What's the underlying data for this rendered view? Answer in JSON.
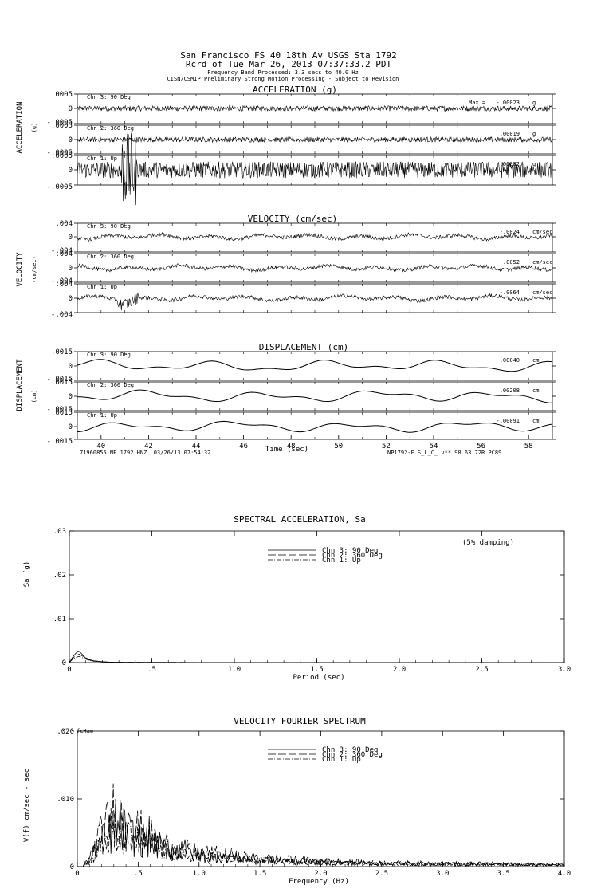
{
  "header": {
    "line1": "San Francisco FS 40 18th Av    USGS Sta 1792",
    "line2": "Rcrd of Tue Mar 26, 2013 07:37:33.2 PDT",
    "line3": "Frequency Band Processed: 3.3 secs to 40.0 Hz",
    "line4": "CISN/CSMIP Preliminary Strong Motion Processing - Subject to Revision"
  },
  "chart_data": [
    {
      "type": "line",
      "title": "ACCELERATION (g)",
      "ylabel": "ACCELERATION",
      "ylabel_unit": "(g)",
      "xlim": [
        39,
        59
      ],
      "ylim": [
        -0.0005,
        0.0005
      ],
      "ytick_labels": [
        ".0005",
        "0",
        "-.0005"
      ],
      "max_prefix": "Max =",
      "series": [
        {
          "name": "Chn 3: 90 Deg",
          "max_label": "-.00023",
          "unit": "g",
          "max": -0.00023
        },
        {
          "name": "Chn 2: 360 Deg",
          "max_label": ".00019",
          "unit": "g",
          "max": 0.00019
        },
        {
          "name": "Chn 1: Up",
          "max_label": ".00082",
          "unit": "g",
          "max": 0.00082
        }
      ]
    },
    {
      "type": "line",
      "title": "VELOCITY (cm/sec)",
      "ylabel": "VELOCITY",
      "ylabel_unit": "(cm/sec)",
      "xlim": [
        39,
        59
      ],
      "ylim": [
        -0.004,
        0.004
      ],
      "ytick_labels": [
        ".004",
        "0",
        "-.004"
      ],
      "series": [
        {
          "name": "Chn 3: 90 Deg",
          "max_label": "-.0024",
          "unit": "cm/sec",
          "max": -0.0024
        },
        {
          "name": "Chn 2: 360 Deg",
          "max_label": "-.0052",
          "unit": "cm/sec",
          "max": -0.0052
        },
        {
          "name": "Chn 1: Up",
          "max_label": "-.0064",
          "unit": "cm/sec",
          "max": -0.0064
        }
      ]
    },
    {
      "type": "line",
      "title": "DISPLACEMENT (cm)",
      "ylabel": "DISPLACEMENT",
      "ylabel_unit": "(cm)",
      "xlim": [
        39,
        59
      ],
      "ylim": [
        -0.0015,
        0.0015
      ],
      "ytick_labels": [
        ".0015",
        "0",
        "-.0015"
      ],
      "xlabel": "Time (sec)",
      "xticks": [
        40,
        42,
        44,
        46,
        48,
        50,
        52,
        54,
        56,
        58
      ],
      "footer_left": "71960855.NP.1792.HNZ. 03/26/13 07:54:32",
      "footer_right": "NP1792-F  S_L_C_  v**.98.63.72R PC89",
      "series": [
        {
          "name": "Chn 3: 90 Deg",
          "max_label": ".00040",
          "unit": "cm",
          "max": 0.0004
        },
        {
          "name": "Chn 2: 360 Deg",
          "max_label": ".00208",
          "unit": "cm",
          "max": 0.00208
        },
        {
          "name": "Chn 1: Up",
          "max_label": "-.00091",
          "unit": "cm",
          "max": -0.00091
        }
      ]
    },
    {
      "type": "line",
      "title": "SPECTRAL ACCELERATION, Sa",
      "ylabel": "Sa (g)",
      "xlabel": "Period (sec)",
      "annotation": "(5% damping)",
      "xlim": [
        0,
        3.0
      ],
      "ylim": [
        0,
        0.03
      ],
      "xticks": [
        0,
        0.5,
        1.0,
        1.5,
        2.0,
        2.5,
        3.0
      ],
      "xtick_labels": [
        "0",
        ".5",
        "1.0",
        "1.5",
        "2.0",
        "2.5",
        "3.0"
      ],
      "yticks": [
        0,
        0.01,
        0.02,
        0.03
      ],
      "ytick_labels": [
        "0",
        ".01",
        ".02",
        ".03"
      ],
      "legend": [
        "Chn 3: 90 Deg",
        "Chn 2: 360 Deg",
        "Chn 1: Up"
      ],
      "series": [
        {
          "name": "Chn 3: 90 Deg",
          "x": [
            0.02,
            0.04,
            0.06,
            0.08,
            0.1,
            0.12,
            0.15,
            0.2,
            0.25,
            0.3,
            0.5,
            1.0,
            2.0,
            3.0
          ],
          "y": [
            0.0012,
            0.0022,
            0.0026,
            0.0018,
            0.001,
            0.0006,
            0.0004,
            0.0002,
            0.0001,
            8e-05,
            4e-05,
            2e-05,
            1e-05,
            5e-06
          ]
        },
        {
          "name": "Chn 2: 360 Deg",
          "x": [
            0.02,
            0.04,
            0.06,
            0.08,
            0.1,
            0.12,
            0.15,
            0.2,
            0.25,
            0.3,
            0.5,
            1.0,
            2.0,
            3.0
          ],
          "y": [
            0.001,
            0.0016,
            0.0019,
            0.0015,
            0.0011,
            0.0007,
            0.0004,
            0.0002,
            0.0001,
            8e-05,
            4e-05,
            2e-05,
            1e-05,
            5e-06
          ]
        },
        {
          "name": "Chn 1: Up",
          "x": [
            0.02,
            0.04,
            0.06,
            0.08,
            0.1,
            0.12,
            0.15,
            0.2,
            0.25,
            0.3,
            0.5,
            1.0,
            2.0,
            3.0
          ],
          "y": [
            0.0008,
            0.0012,
            0.0014,
            0.0011,
            0.0008,
            0.0005,
            0.0003,
            0.0002,
            0.0001,
            6e-05,
            3e-05,
            2e-05,
            1e-05,
            5e-06
          ]
        }
      ]
    },
    {
      "type": "line",
      "title": "VELOCITY FOURIER SPECTRUM",
      "ylabel": "V(f)  cm/sec - sec",
      "xlabel": "Frequency (Hz)",
      "corner_label": "fcHaw",
      "xlim": [
        0,
        4.0
      ],
      "ylim": [
        0,
        0.02
      ],
      "xticks": [
        0,
        0.5,
        1.0,
        1.5,
        2.0,
        2.5,
        3.0,
        3.5,
        4.0
      ],
      "xtick_labels": [
        "0",
        ".5",
        "1.0",
        "1.5",
        "2.0",
        "2.5",
        "3.0",
        "3.5",
        "4.0"
      ],
      "yticks": [
        0,
        0.01,
        0.02
      ],
      "ytick_labels": [
        "0",
        ".010",
        ".020"
      ],
      "legend": [
        "Chn 3: 90 Deg",
        "Chn 2: 360 Deg",
        "Chn 1: Up"
      ],
      "series": [
        {
          "name": "Chn 3: 90 Deg",
          "x": [
            0.05,
            0.1,
            0.15,
            0.2,
            0.25,
            0.3,
            0.35,
            0.4,
            0.5,
            0.6,
            0.7,
            0.8,
            1.0,
            1.2,
            1.5,
            2.0,
            2.5,
            3.0,
            3.5,
            4.0
          ],
          "y": [
            0.0002,
            0.0012,
            0.003,
            0.0045,
            0.0055,
            0.007,
            0.0075,
            0.0065,
            0.005,
            0.0048,
            0.0035,
            0.003,
            0.002,
            0.0018,
            0.0012,
            0.0008,
            0.0006,
            0.0005,
            0.0004,
            0.0003
          ]
        },
        {
          "name": "Chn 2: 360 Deg",
          "x": [
            0.05,
            0.1,
            0.15,
            0.2,
            0.25,
            0.3,
            0.35,
            0.4,
            0.5,
            0.6,
            0.7,
            0.8,
            1.0,
            1.2,
            1.5,
            2.0,
            2.5,
            3.0,
            3.5,
            4.0
          ],
          "y": [
            0.0003,
            0.0015,
            0.004,
            0.006,
            0.0075,
            0.01,
            0.0085,
            0.008,
            0.0065,
            0.0055,
            0.004,
            0.0035,
            0.0025,
            0.0022,
            0.0015,
            0.001,
            0.0007,
            0.0006,
            0.0005,
            0.0004
          ]
        },
        {
          "name": "Chn 1: Up",
          "x": [
            0.05,
            0.1,
            0.15,
            0.2,
            0.25,
            0.3,
            0.35,
            0.4,
            0.5,
            0.6,
            0.7,
            0.8,
            1.0,
            1.2,
            1.5,
            2.0,
            2.5,
            3.0,
            3.5,
            4.0
          ],
          "y": [
            0.0002,
            0.001,
            0.0025,
            0.004,
            0.005,
            0.0055,
            0.006,
            0.0052,
            0.0045,
            0.004,
            0.003,
            0.0025,
            0.0018,
            0.0015,
            0.0011,
            0.0007,
            0.0005,
            0.0004,
            0.0004,
            0.0003
          ]
        }
      ]
    }
  ]
}
